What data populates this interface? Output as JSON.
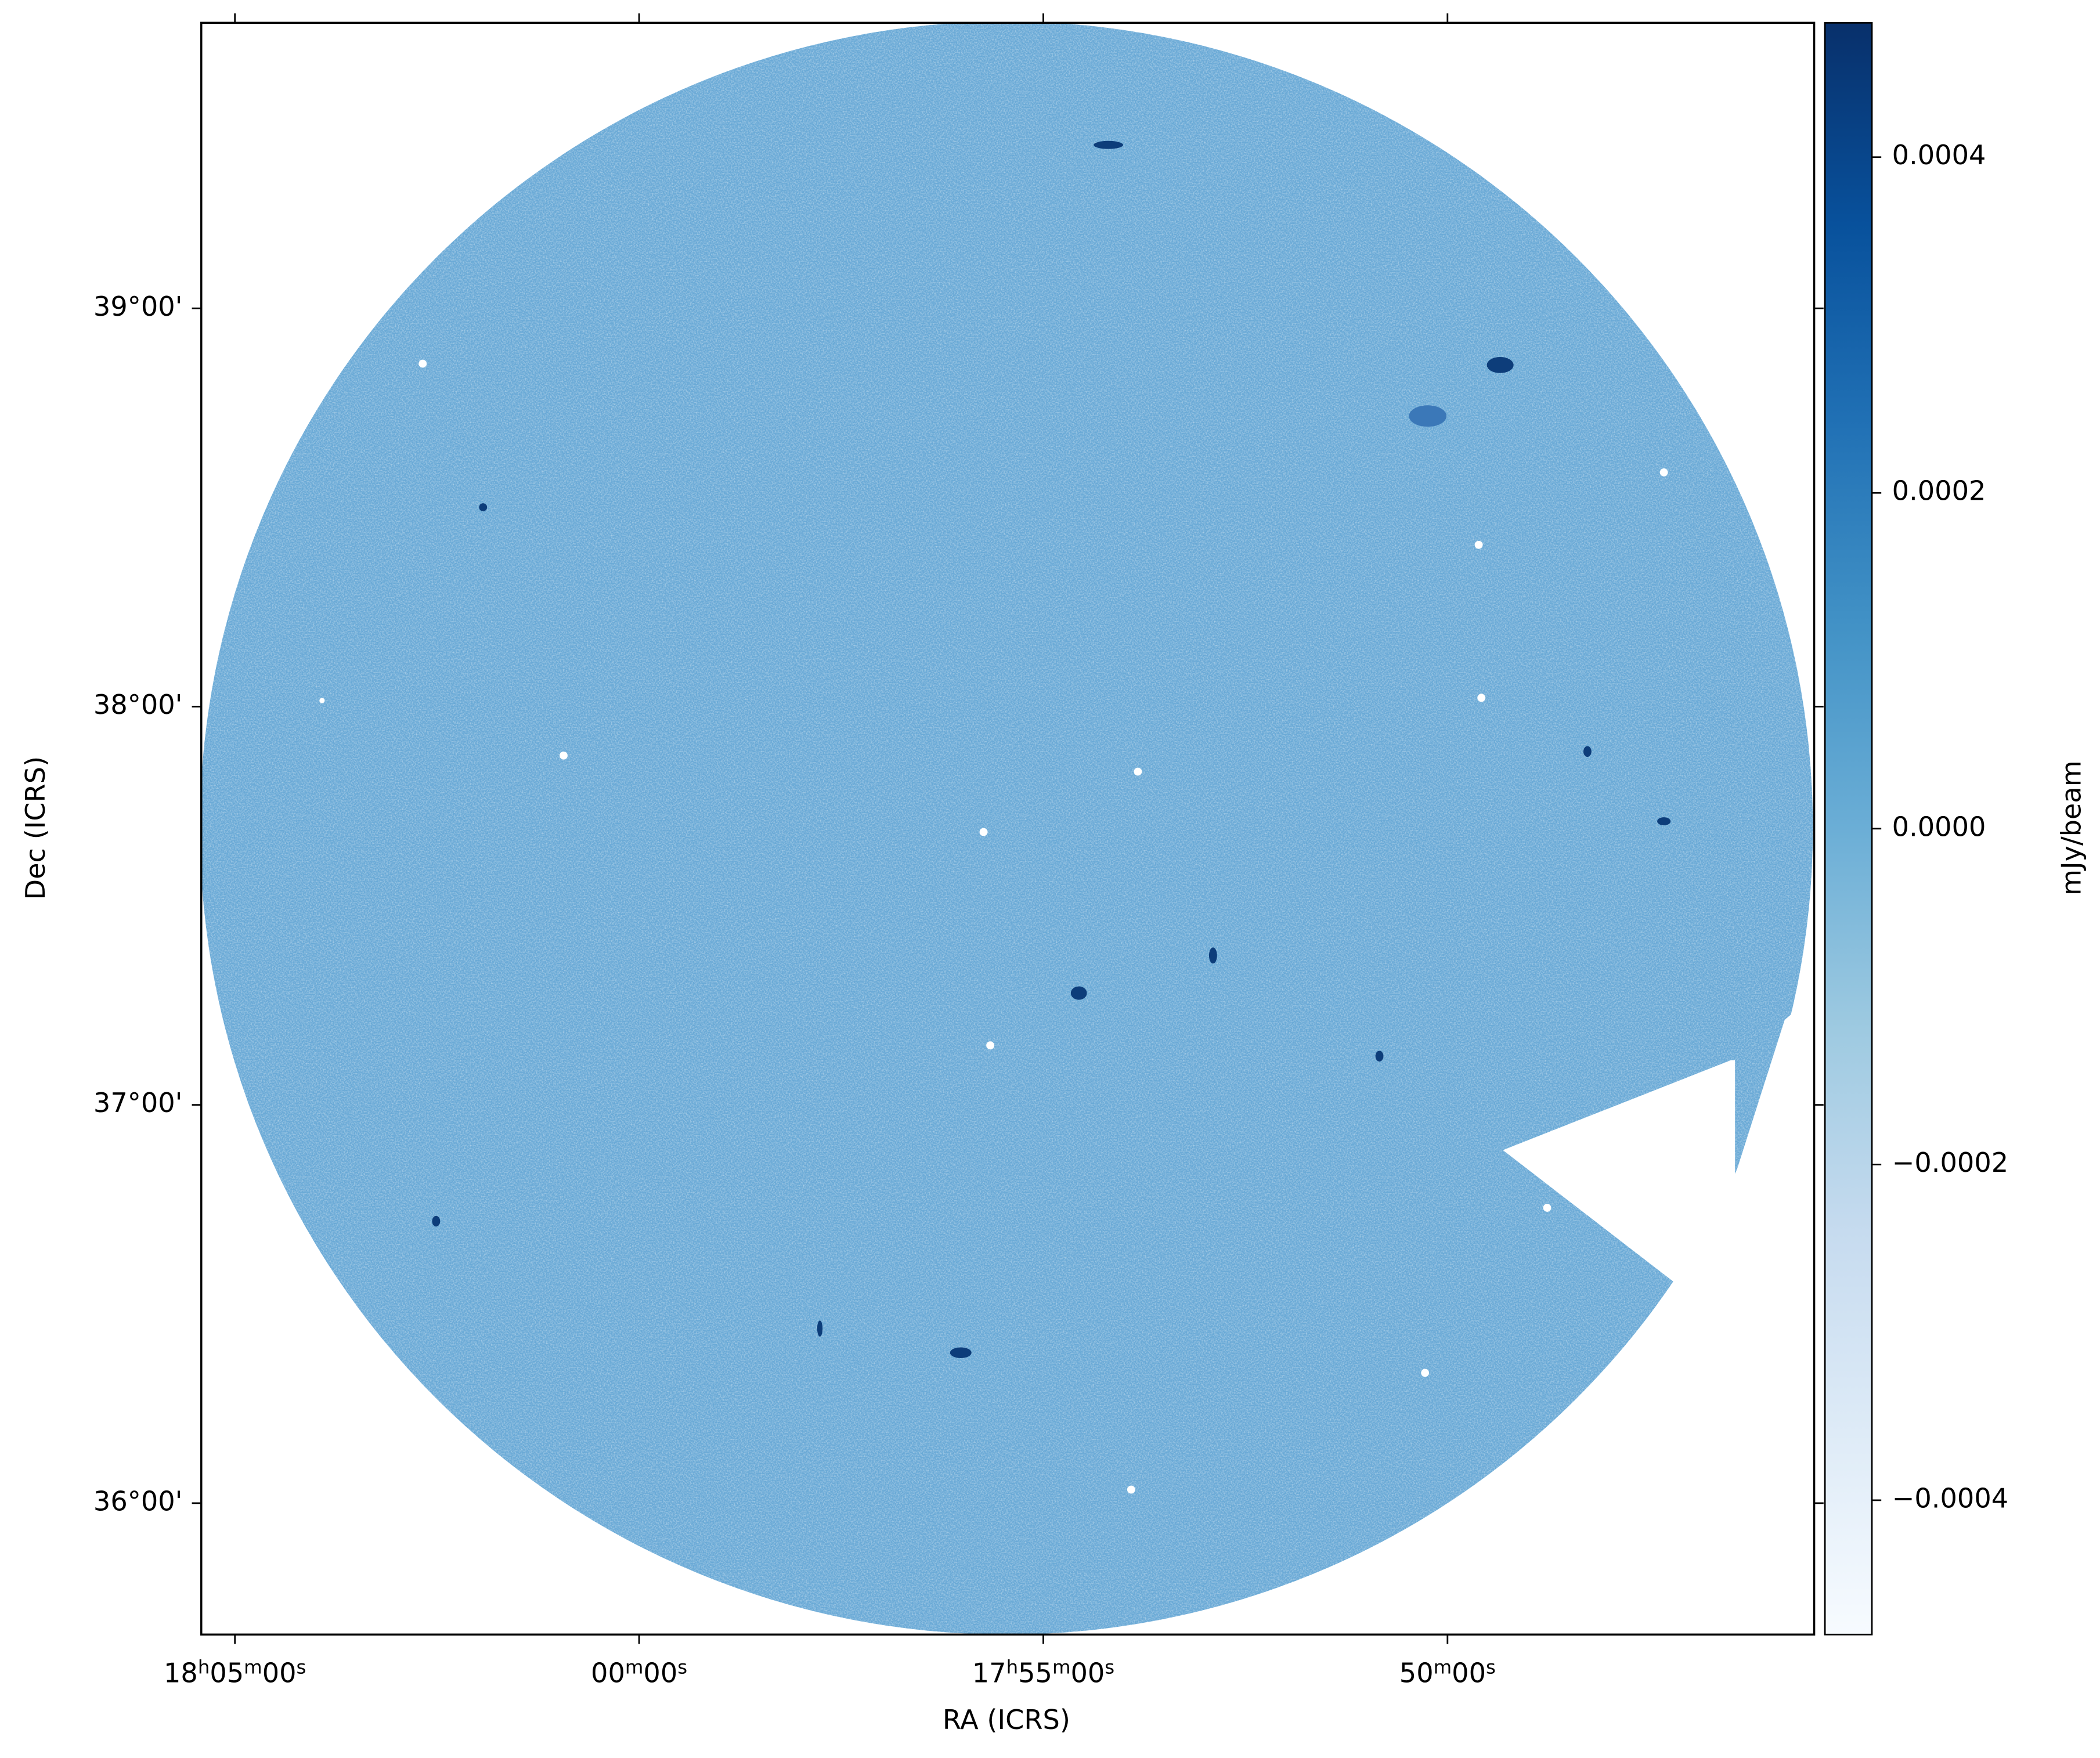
{
  "chart_data": {
    "type": "image",
    "xlabel": "RA (ICRS)",
    "ylabel": "Dec (ICRS)",
    "colorbar_label": "mJy/beam",
    "colormap": "Blues",
    "xlim": [
      271.354,
      266.366
    ],
    "ylim": [
      35.67,
      39.717
    ],
    "xticks": [
      {
        "value": 271.25,
        "label": "18h05m00s"
      },
      {
        "value": 270,
        "label": "00m00s"
      },
      {
        "value": 268.75,
        "label": "17h55m00s"
      },
      {
        "value": 267.5,
        "label": "50m00s"
      }
    ],
    "yticks": [
      {
        "value": 36,
        "label": "36°00'"
      },
      {
        "value": 37,
        "label": "37°00'"
      },
      {
        "value": 38,
        "label": "38°00'"
      },
      {
        "value": 39,
        "label": "39°00'"
      }
    ],
    "clim": [
      -0.00048,
      0.00048
    ],
    "cticks": [
      {
        "value": -0.0004,
        "label": "−0.0004"
      },
      {
        "value": -0.0002,
        "label": "−0.0002"
      },
      {
        "value": 0,
        "label": "0.0000"
      },
      0.0002,
      0.0004
    ]
  }
}
